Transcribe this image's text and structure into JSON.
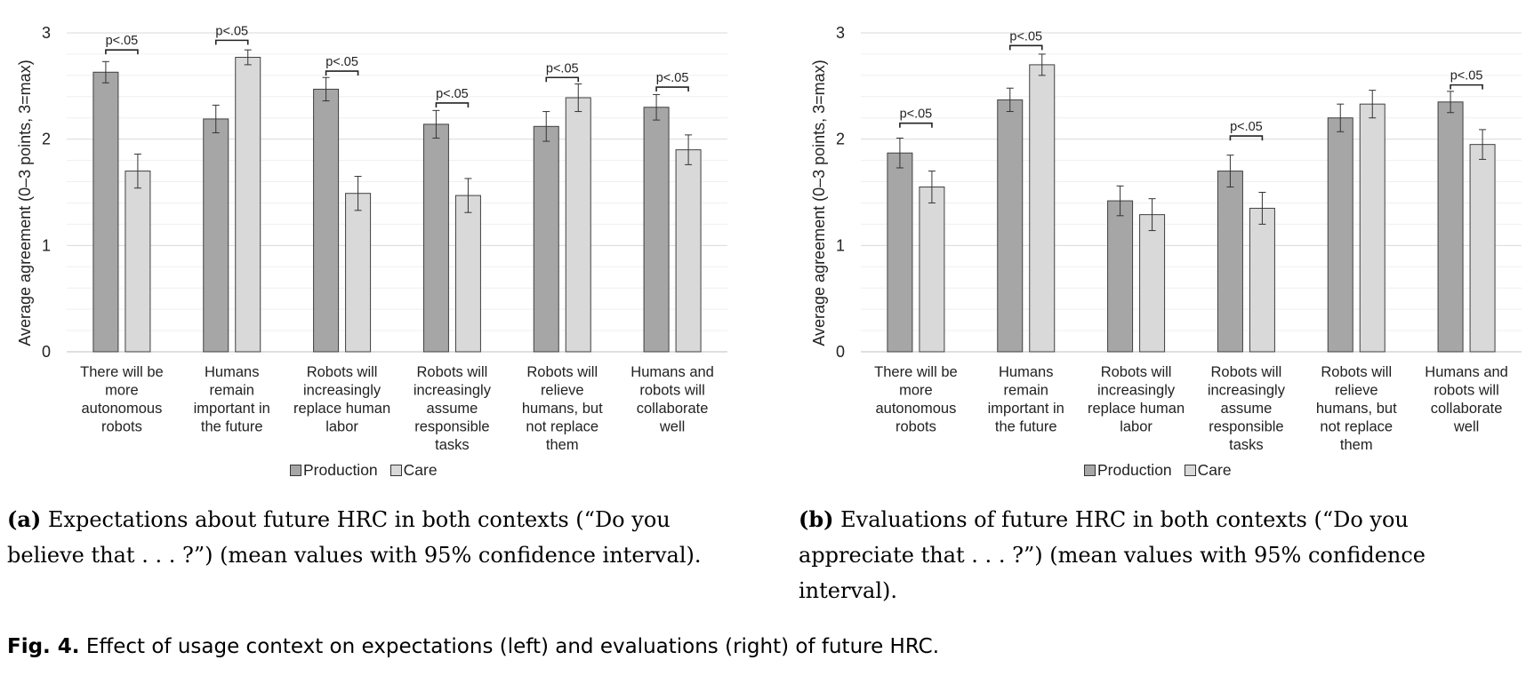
{
  "chart_data": [
    {
      "type": "bar",
      "ylabel": "Average agreement (0–3 points, 3=max)",
      "ylim": [
        0,
        3
      ],
      "yticks": [
        "0",
        "1",
        "2",
        "3"
      ],
      "grid": true,
      "legend_position": "bottom",
      "categories": [
        [
          "There will be",
          "more",
          "autonomous",
          "robots"
        ],
        [
          "Humans",
          "remain",
          "important in",
          "the future"
        ],
        [
          "Robots will",
          "increasingly",
          "replace human",
          "labor"
        ],
        [
          "Robots will",
          "increasingly",
          "assume",
          "responsible",
          "tasks"
        ],
        [
          "Robots will",
          "relieve",
          "humans, but",
          "not replace",
          "them"
        ],
        [
          "Humans and",
          "robots will",
          "collaborate",
          "well"
        ]
      ],
      "series": [
        {
          "name": "Production",
          "color": "#a6a6a6",
          "values": [
            2.63,
            2.19,
            2.47,
            2.14,
            2.12,
            2.3
          ],
          "ci": [
            0.1,
            0.13,
            0.11,
            0.13,
            0.14,
            0.12
          ]
        },
        {
          "name": "Care",
          "color": "#d9d9d9",
          "values": [
            1.7,
            2.77,
            1.49,
            1.47,
            2.39,
            1.9
          ],
          "ci": [
            0.16,
            0.07,
            0.16,
            0.16,
            0.13,
            0.14
          ]
        }
      ],
      "annotations": [
        {
          "category": 0,
          "text": "p<.05",
          "y": 2.84
        },
        {
          "category": 1,
          "text": "p<.05",
          "y": 2.93
        },
        {
          "category": 2,
          "text": "p<.05",
          "y": 2.64
        },
        {
          "category": 3,
          "text": "p<.05",
          "y": 2.34
        },
        {
          "category": 4,
          "text": "p<.05",
          "y": 2.58
        },
        {
          "category": 5,
          "text": "p<.05",
          "y": 2.49
        }
      ]
    },
    {
      "type": "bar",
      "ylabel": "Average agreement (0–3 points, 3=max)",
      "ylim": [
        0,
        3
      ],
      "yticks": [
        "0",
        "1",
        "2",
        "3"
      ],
      "grid": true,
      "legend_position": "bottom",
      "categories": [
        [
          "There will be",
          "more",
          "autonomous",
          "robots"
        ],
        [
          "Humans",
          "remain",
          "important in",
          "the future"
        ],
        [
          "Robots will",
          "increasingly",
          "replace human",
          "labor"
        ],
        [
          "Robots will",
          "increasingly",
          "assume",
          "responsible",
          "tasks"
        ],
        [
          "Robots will",
          "relieve",
          "humans, but",
          "not replace",
          "them"
        ],
        [
          "Humans and",
          "robots will",
          "collaborate",
          "well"
        ]
      ],
      "series": [
        {
          "name": "Production",
          "color": "#a6a6a6",
          "values": [
            1.87,
            2.37,
            1.42,
            1.7,
            2.2,
            2.35
          ],
          "ci": [
            0.14,
            0.11,
            0.14,
            0.15,
            0.13,
            0.1
          ]
        },
        {
          "name": "Care",
          "color": "#d9d9d9",
          "values": [
            1.55,
            2.7,
            1.29,
            1.35,
            2.33,
            1.95
          ],
          "ci": [
            0.15,
            0.1,
            0.15,
            0.15,
            0.13,
            0.14
          ]
        }
      ],
      "annotations": [
        {
          "category": 0,
          "text": "p<.05",
          "y": 2.15
        },
        {
          "category": 1,
          "text": "p<.05",
          "y": 2.88
        },
        {
          "category": 3,
          "text": "p<.05",
          "y": 2.03
        },
        {
          "category": 5,
          "text": "p<.05",
          "y": 2.51
        }
      ]
    }
  ],
  "captions": {
    "a_label": "(a)",
    "a_text": "Expectations about future HRC in both contexts (“Do you believe that . . . ?”) (mean values with 95% confidence interval).",
    "b_label": "(b)",
    "b_text": "Evaluations of future HRC in both contexts (“Do you appreciate that . . . ?”) (mean values with 95% confidence interval).",
    "fig_label": "Fig. 4.",
    "fig_text": "Effect of usage context on expectations (left) and evaluations (right) of future HRC."
  },
  "legend": {
    "production": "Production",
    "care": "Care"
  }
}
